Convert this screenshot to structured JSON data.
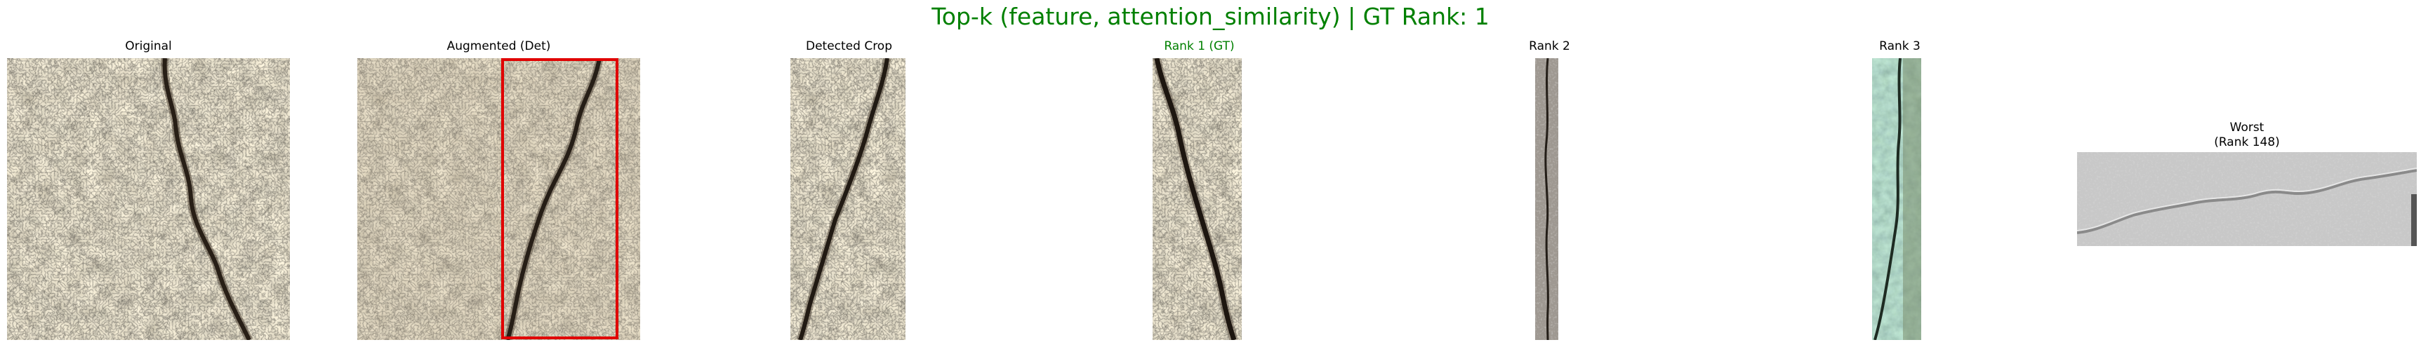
{
  "figure": {
    "title": "Top-k (feature, attention_similarity) | GT Rank: 1",
    "title_color": "#008000",
    "panels": [
      {
        "label": "Original"
      },
      {
        "label": "Augmented (Det)",
        "box_color": "#e00000"
      },
      {
        "label": "Detected Crop"
      },
      {
        "label": "Rank 1 (GT)",
        "label_color": "#008000"
      },
      {
        "label": "Rank 2"
      },
      {
        "label": "Rank 3"
      },
      {
        "label": "Worst\n(Rank 148)"
      }
    ]
  }
}
